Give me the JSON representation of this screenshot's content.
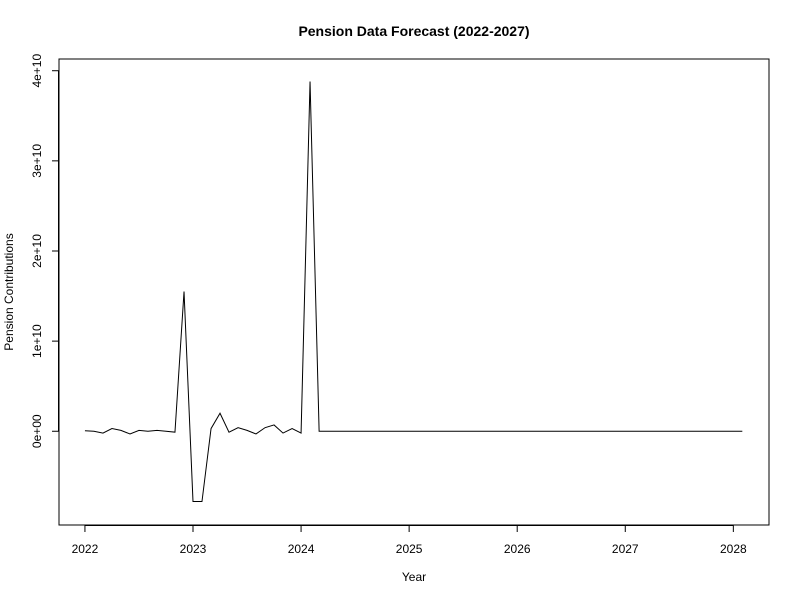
{
  "chart_data": {
    "type": "line",
    "title": "Pension Data Forecast (2022-2027)",
    "xlabel": "Year",
    "ylabel": "Pension Contributions",
    "xlim": [
      2021.76,
      2028.33
    ],
    "ylim": [
      -10400000000.0,
      41300000000.0
    ],
    "x_ticks": [
      {
        "value": 2022,
        "label": "2022"
      },
      {
        "value": 2023,
        "label": "2023"
      },
      {
        "value": 2024,
        "label": "2024"
      },
      {
        "value": 2025,
        "label": "2025"
      },
      {
        "value": 2026,
        "label": "2026"
      },
      {
        "value": 2027,
        "label": "2027"
      },
      {
        "value": 2028,
        "label": "2028"
      }
    ],
    "y_ticks": [
      {
        "value": 0,
        "label": "0e+00"
      },
      {
        "value": 10000000000,
        "label": "1e+10"
      },
      {
        "value": 20000000000,
        "label": "2e+10"
      },
      {
        "value": 30000000000,
        "label": "3e+10"
      },
      {
        "value": 40000000000,
        "label": "4e+10"
      }
    ],
    "grid": false,
    "legend": "none",
    "series": [
      {
        "color": "#000000",
        "x": [
          2022.0,
          2022.083,
          2022.167,
          2022.25,
          2022.333,
          2022.417,
          2022.5,
          2022.583,
          2022.667,
          2022.75,
          2022.833,
          2022.917,
          2023.0,
          2023.083,
          2023.167,
          2023.25,
          2023.333,
          2023.417,
          2023.5,
          2023.583,
          2023.667,
          2023.75,
          2023.833,
          2023.917,
          2024.0,
          2024.083,
          2024.167,
          2024.25,
          2028.083
        ],
        "y": [
          50000000.0,
          0.0,
          -200000000.0,
          300000000.0,
          100000000.0,
          -300000000.0,
          100000000.0,
          0.0,
          100000000.0,
          0.0,
          -100000000.0,
          15500000000.0,
          -7800000000.0,
          -7800000000.0,
          300000000.0,
          2000000000.0,
          -100000000.0,
          400000000.0,
          100000000.0,
          -300000000.0,
          400000000.0,
          700000000.0,
          -200000000.0,
          300000000.0,
          -200000000.0,
          38800000000.0,
          0.0,
          0.0,
          0.0
        ]
      }
    ]
  }
}
